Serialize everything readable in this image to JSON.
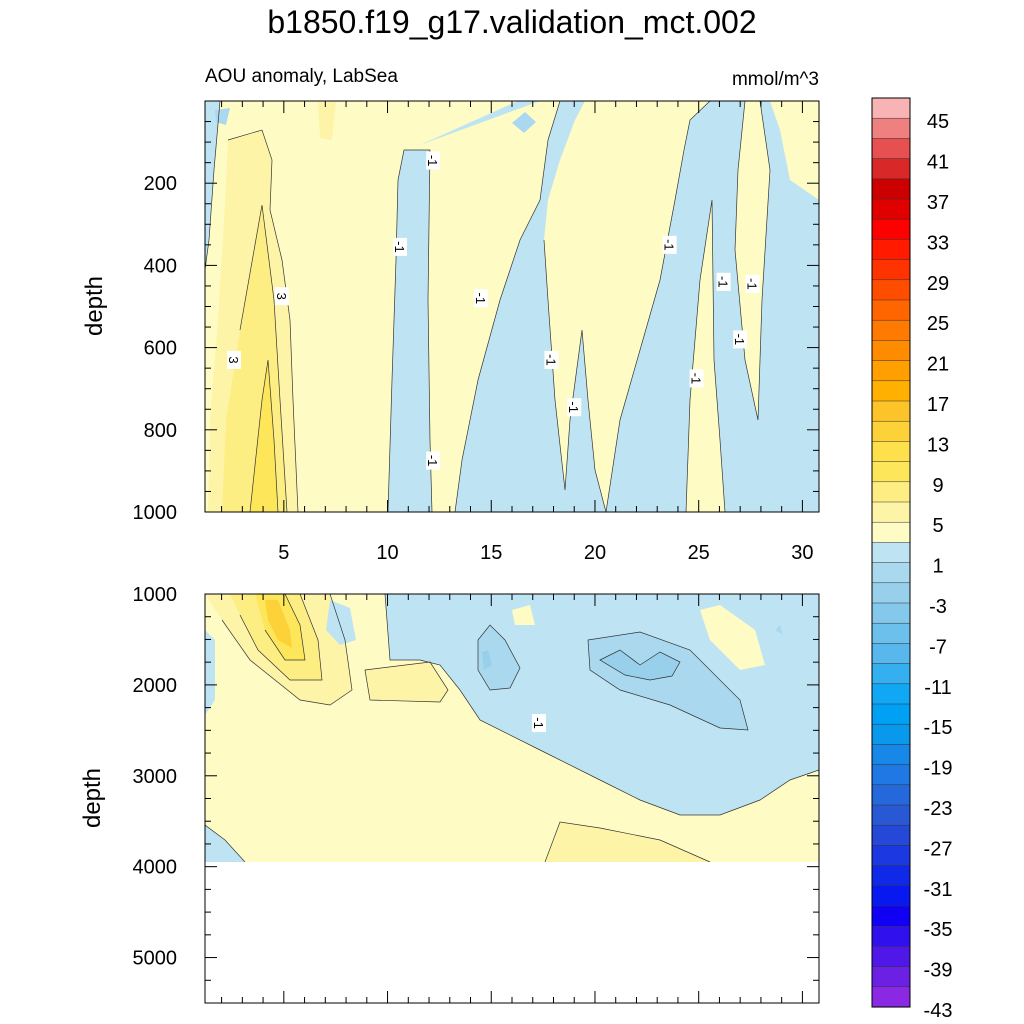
{
  "chart_data": {
    "type": "heatmap",
    "title": "b1850.f19_g17.validation_mct.002",
    "subtitle_left": "AOU anomaly, LabSea",
    "subtitle_right": "mmol/m^3",
    "colorbar": {
      "labels": [
        "45",
        "41",
        "37",
        "33",
        "29",
        "25",
        "21",
        "17",
        "13",
        "9",
        "5",
        "1",
        "-3",
        "-7",
        "-11",
        "-15",
        "-19",
        "-23",
        "-27",
        "-31",
        "-35",
        "-39",
        "-43"
      ],
      "colors": [
        "#f8b4b4",
        "#ee8080",
        "#e65050",
        "#d82828",
        "#cc0000",
        "#e00000",
        "#ff0000",
        "#ff1a00",
        "#ff3300",
        "#ff4d00",
        "#ff6600",
        "#ff7a00",
        "#ff8c00",
        "#ffa000",
        "#ffb000",
        "#fcc428",
        "#fdd238",
        "#fedf4c",
        "#fde65a",
        "#fdee84",
        "#fef4a8",
        "#fefcc4",
        "#bee4f4",
        "#aad8ee",
        "#98d0ec",
        "#84c8ec",
        "#6cc0ec",
        "#58b8ee",
        "#34b0f0",
        "#10a8f4",
        "#00a0f4",
        "#0898ec",
        "#1888e8",
        "#2078e4",
        "#2468dc",
        "#2858d4",
        "#2648d8",
        "#1c38e0",
        "#1028e8",
        "#0818f0",
        "#1000f4",
        "#3010ec",
        "#5018e8",
        "#6c20e4",
        "#8a28e4"
      ]
    },
    "panels": [
      {
        "name": "upper",
        "ylabel": "depth",
        "ylim": [
          0,
          1000
        ],
        "yticks": [
          200,
          400,
          600,
          800,
          1000
        ],
        "xlim": [
          1.2,
          30.8
        ],
        "xticks": [
          5,
          10,
          15,
          20,
          25,
          30
        ],
        "contour_labels": [
          {
            "text": "-1",
            "x": 12.2,
            "y": 145
          },
          {
            "text": "-1",
            "x": 10.6,
            "y": 355
          },
          {
            "text": "3",
            "x": 4.9,
            "y": 475
          },
          {
            "text": "-1",
            "x": 14.5,
            "y": 480
          },
          {
            "text": "3",
            "x": 2.6,
            "y": 630
          },
          {
            "text": "-1",
            "x": 23.6,
            "y": 350
          },
          {
            "text": "-1",
            "x": 17.9,
            "y": 630
          },
          {
            "text": "-1",
            "x": 19.0,
            "y": 745
          },
          {
            "text": "-1",
            "x": 12.2,
            "y": 875
          },
          {
            "text": "-1",
            "x": 26.2,
            "y": 440
          },
          {
            "text": "-1",
            "x": 27.6,
            "y": 445
          },
          {
            "text": "-1",
            "x": 27.0,
            "y": 580
          },
          {
            "text": "-1",
            "x": 24.9,
            "y": 675
          }
        ]
      },
      {
        "name": "lower",
        "ylabel": "depth",
        "ylim": [
          1000,
          5500
        ],
        "yticks": [
          1000,
          2000,
          3000,
          4000,
          5000
        ],
        "xlim": [
          1.2,
          30.8
        ],
        "data_bottom_depth": 3880,
        "contour_labels": [
          {
            "text": "-1",
            "x": 17.3,
            "y": 2420
          }
        ]
      }
    ]
  }
}
